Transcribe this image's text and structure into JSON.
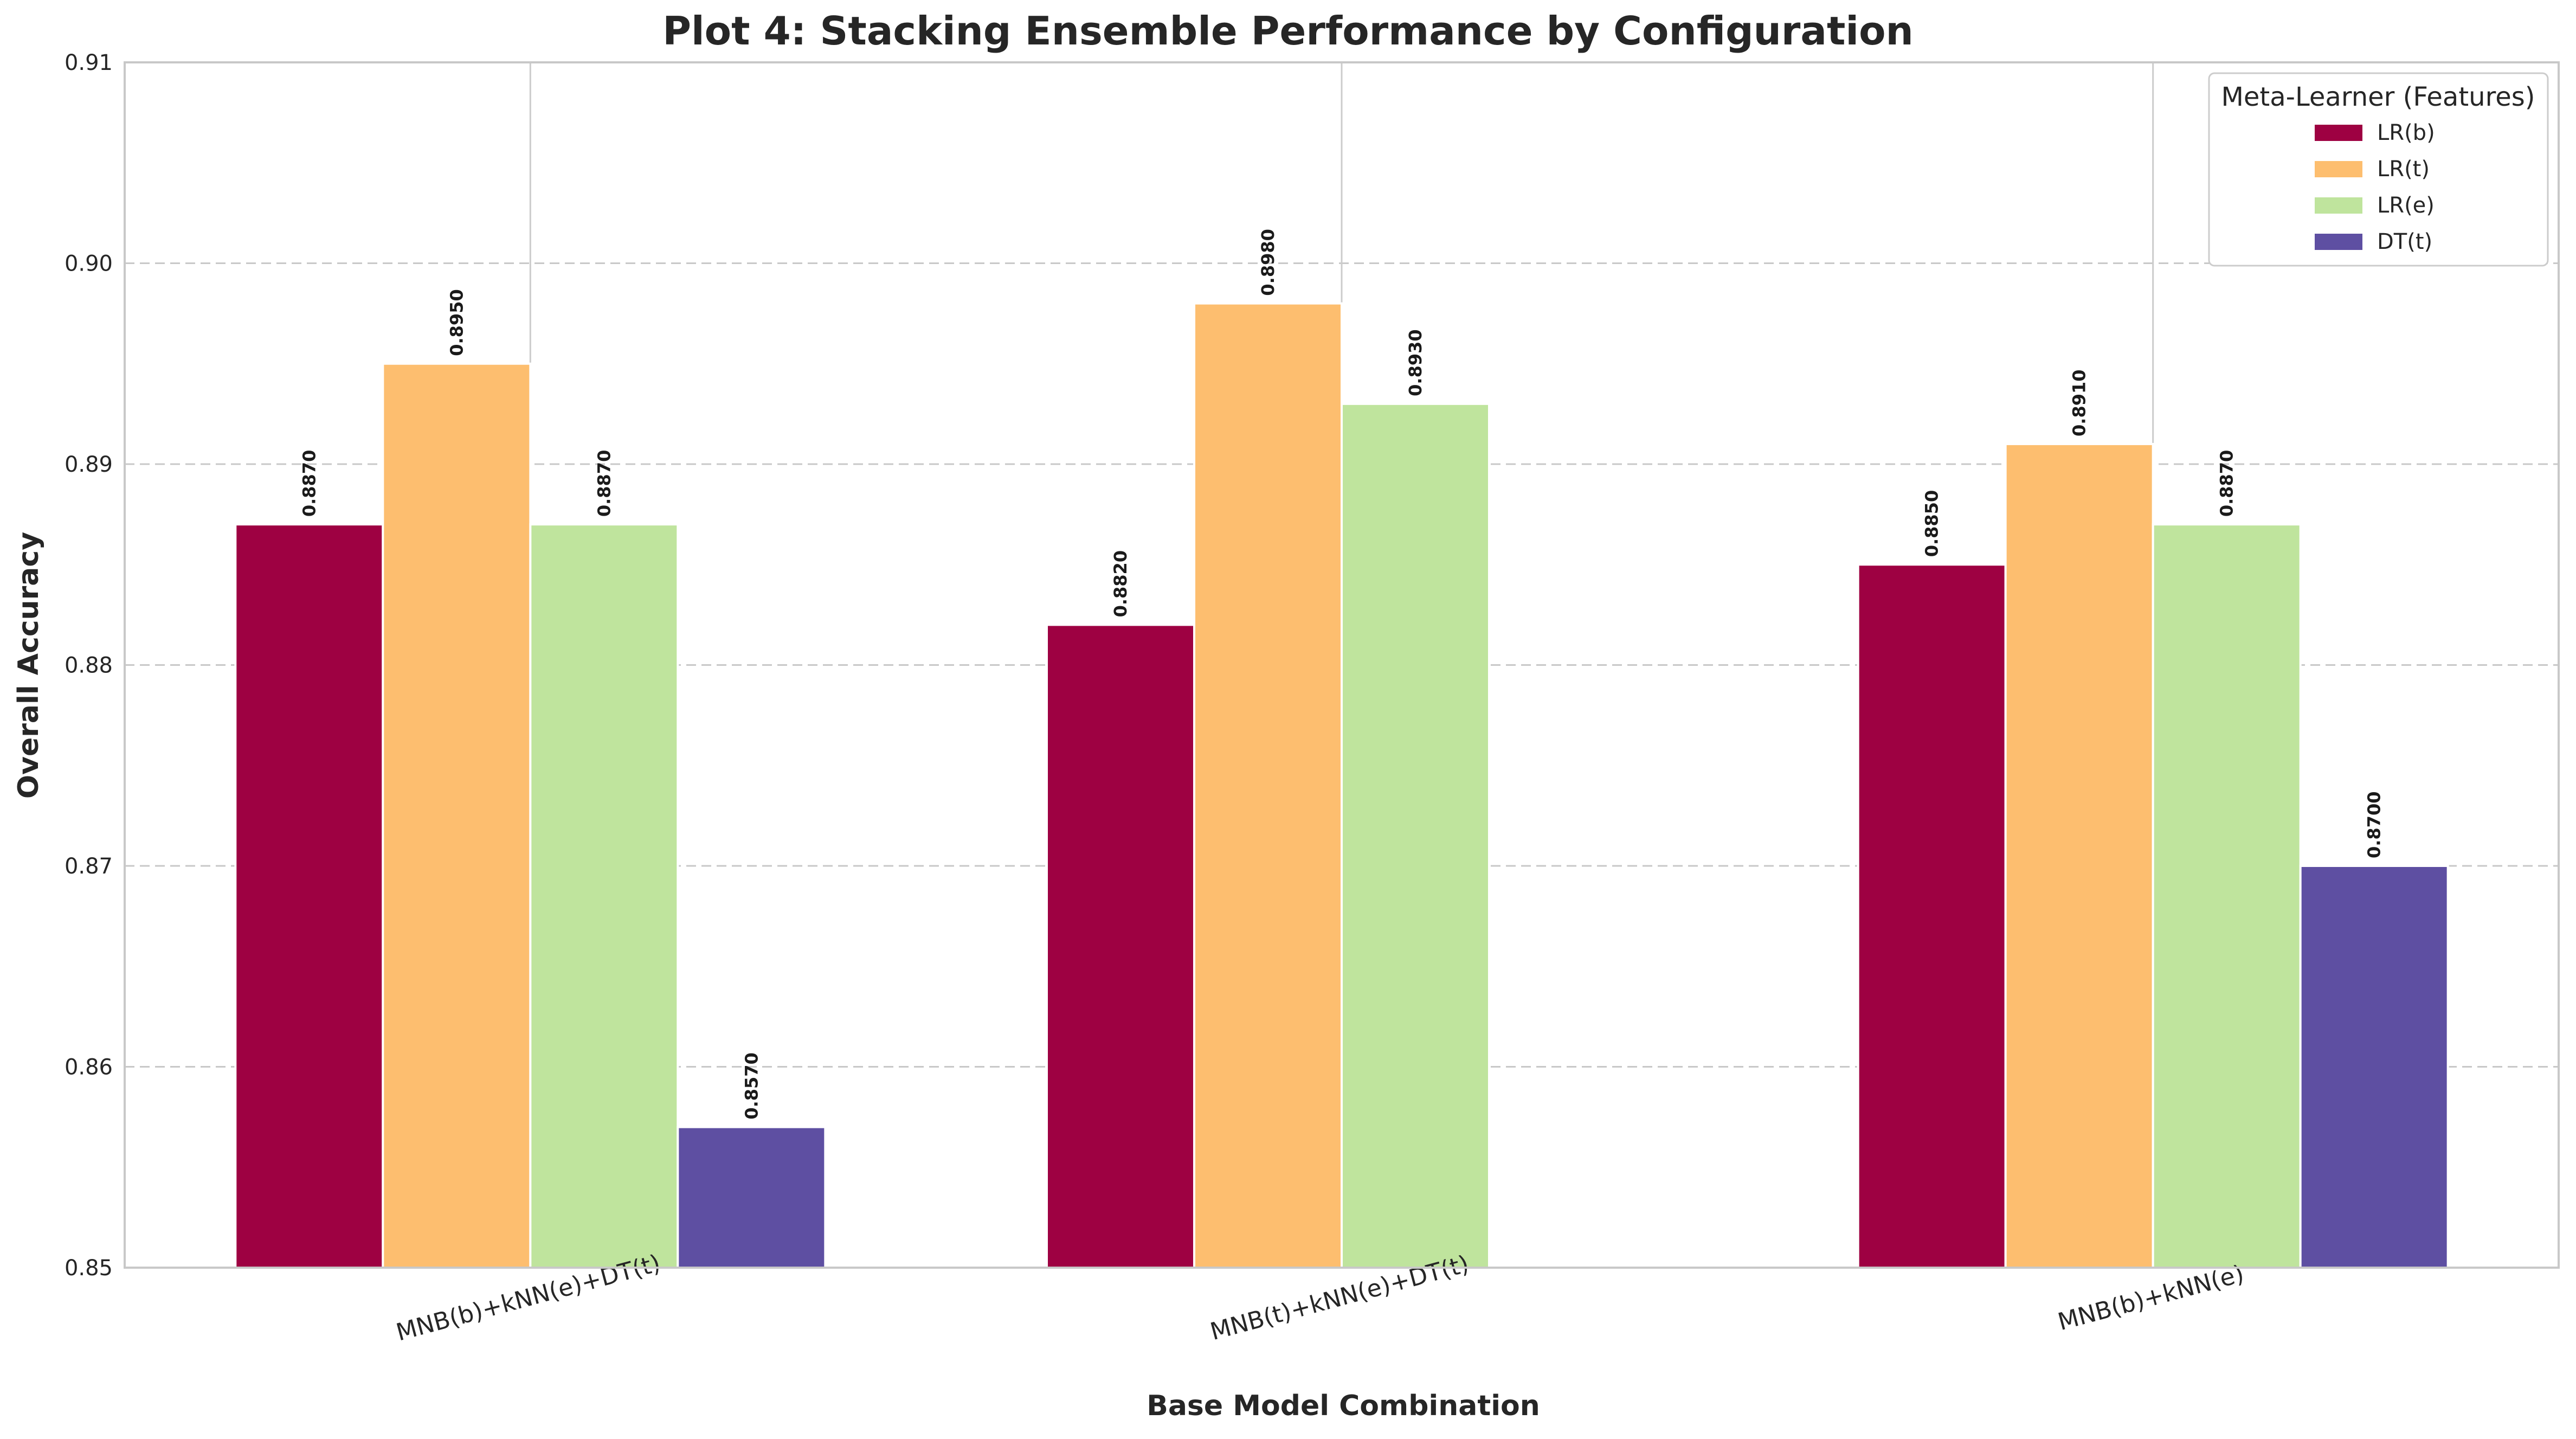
{
  "chart_data": {
    "type": "bar",
    "title": "Plot 4: Stacking Ensemble Performance by Configuration",
    "xlabel": "Base Model Combination",
    "ylabel": "Overall Accuracy",
    "ylim": [
      0.85,
      0.91
    ],
    "yticks": [
      "0.85",
      "0.86",
      "0.87",
      "0.88",
      "0.89",
      "0.90",
      "0.91"
    ],
    "grid": "horizontal dashed",
    "categories": [
      "MNB(b)+kNN(e)+DT(t)",
      "MNB(t)+kNN(e)+DT(t)",
      "MNB(b)+kNN(e)"
    ],
    "legend": {
      "title": "Meta-Learner (Features)",
      "position": "top-right"
    },
    "series": [
      {
        "name": "LR(b)",
        "color": "#9e0142",
        "values": [
          0.887,
          0.882,
          0.885
        ],
        "labels": [
          "0.8870",
          "0.8820",
          "0.8850"
        ]
      },
      {
        "name": "LR(t)",
        "color": "#fdbe6f",
        "values": [
          0.895,
          0.898,
          0.891
        ],
        "labels": [
          "0.8950",
          "0.8980",
          "0.8910"
        ]
      },
      {
        "name": "LR(e)",
        "color": "#bfe49d",
        "values": [
          0.887,
          0.893,
          0.887
        ],
        "labels": [
          "0.8870",
          "0.8930",
          "0.8870"
        ]
      },
      {
        "name": "DT(t)",
        "color": "#5e4fa2",
        "values": [
          0.857,
          null,
          0.87
        ],
        "labels": [
          "0.8570",
          null,
          "0.8700"
        ]
      }
    ]
  }
}
